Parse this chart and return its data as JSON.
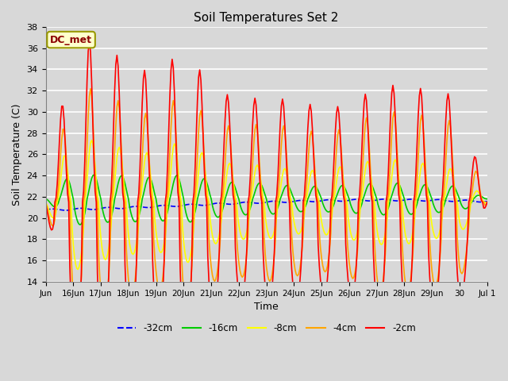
{
  "title": "Soil Temperatures Set 2",
  "xlabel": "Time",
  "ylabel": "Soil Temperature (C)",
  "ylim": [
    14,
    38
  ],
  "yticks": [
    14,
    16,
    18,
    20,
    22,
    24,
    26,
    28,
    30,
    32,
    34,
    36,
    38
  ],
  "annotation": "DC_met",
  "bg_color": "#d8d8d8",
  "series_colors": [
    "blue",
    "#00cc00",
    "yellow",
    "orange",
    "red"
  ],
  "series_styles": [
    "--",
    "-",
    "-",
    "-",
    "-"
  ],
  "series_widths": [
    1.2,
    1.2,
    1.2,
    1.2,
    1.2
  ],
  "legend_labels": [
    "-32cm",
    "-16cm",
    "-8cm",
    "-4cm",
    "-2cm"
  ],
  "xtick_labels": [
    "Jun",
    "16Jun",
    "17Jun",
    "18Jun",
    "19Jun",
    "20Jun",
    "21Jun",
    "22Jun",
    "23Jun",
    "24Jun",
    "25Jun",
    "26Jun",
    "27Jun",
    "28Jun",
    "29Jun",
    "30",
    "Jul 1"
  ],
  "xtick_positions": [
    0,
    24,
    48,
    72,
    96,
    120,
    144,
    168,
    192,
    216,
    240,
    264,
    288,
    312,
    336,
    360,
    384
  ]
}
